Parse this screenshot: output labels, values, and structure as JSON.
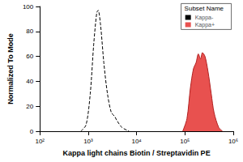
{
  "chart_data": {
    "type": "line",
    "x_label": "Kappa light chains Biotin / Streptavidin PE",
    "y_label": "Normalized To Mode",
    "legend_title": "Subset Name",
    "legend": "upper right",
    "log": "x",
    "grid": false,
    "xlim": [
      100,
      1000000
    ],
    "xticks": [
      {
        "value": 100,
        "label": "10²"
      },
      {
        "value": 1000,
        "label": "10³"
      },
      {
        "value": 10000,
        "label": "10⁴"
      },
      {
        "value": 100000,
        "label": "10⁵"
      },
      {
        "value": 1000000,
        "label": "10⁶"
      }
    ],
    "ylim": [
      0,
      100
    ],
    "yticks": [
      0,
      20,
      40,
      60,
      80,
      100
    ],
    "series": [
      {
        "name": "Kappa-",
        "color": "#000000",
        "line_style": "dashed",
        "x": [
          700,
          900,
          1100,
          1300,
          1500,
          1600,
          1800,
          2100,
          2500,
          3000,
          3500,
          4000,
          5000,
          7000
        ],
        "values": [
          0,
          5,
          30,
          70,
          95,
          97,
          85,
          55,
          30,
          15,
          12,
          8,
          3,
          0
        ]
      },
      {
        "name": "Kappa+",
        "color": "#e8514f",
        "line_style": "filled",
        "x": [
          90000,
          110000,
          130000,
          150000,
          170000,
          190000,
          210000,
          230000,
          260000,
          300000,
          350000,
          400000,
          500000,
          600000
        ],
        "values": [
          0,
          10,
          35,
          50,
          55,
          62,
          58,
          63,
          60,
          48,
          30,
          15,
          3,
          0
        ]
      }
    ]
  }
}
